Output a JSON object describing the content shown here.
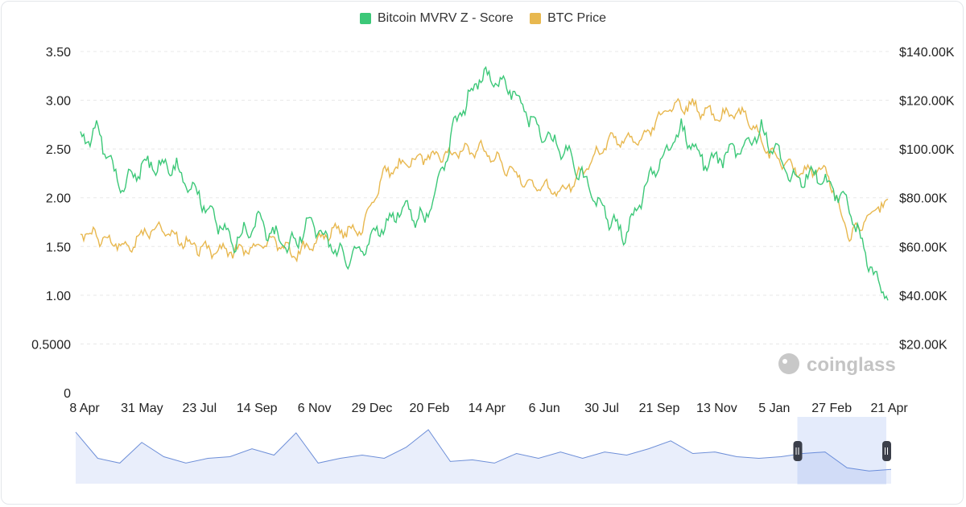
{
  "chart_data": {
    "type": "line",
    "legend_position": "top-center",
    "grid": true,
    "x_tick_labels": [
      "8 Apr",
      "31 May",
      "23 Jul",
      "14 Sep",
      "6 Nov",
      "29 Dec",
      "20 Feb",
      "14 Apr",
      "6 Jun",
      "30 Jul",
      "21 Sep",
      "13 Nov",
      "5 Jan",
      "27 Feb",
      "21 Apr"
    ],
    "y_left": {
      "ylim": [
        0,
        3.5
      ],
      "tick_labels": [
        "3.50",
        "3.00",
        "2.50",
        "2.00",
        "1.50",
        "1.00",
        "0.5000",
        "0"
      ]
    },
    "y_right": {
      "ylim": [
        0,
        140000
      ],
      "tick_labels": [
        "$140.00K",
        "$120.00K",
        "$100.00K",
        "$80.00K",
        "$60.00K",
        "$40.00K",
        "$20.00K"
      ]
    },
    "series": [
      {
        "name": "Bitcoin MVRV Z - Score",
        "axis": "left",
        "color": "#3cc878",
        "x": [
          0,
          2,
          5,
          8,
          12,
          15,
          19,
          22,
          26,
          29,
          33,
          36,
          40,
          43,
          47,
          50,
          54,
          57,
          61,
          64,
          68,
          71,
          75,
          78,
          82,
          85,
          89,
          92,
          96,
          99,
          101
        ],
        "values": [
          2.55,
          2.7,
          2.1,
          2.35,
          2.3,
          2.0,
          1.55,
          1.75,
          1.5,
          1.75,
          1.35,
          1.55,
          1.9,
          1.75,
          2.8,
          3.25,
          3.1,
          2.7,
          2.45,
          2.0,
          1.6,
          2.2,
          2.7,
          2.35,
          2.5,
          2.7,
          2.2,
          2.25,
          1.9,
          1.2,
          0.95
        ]
      },
      {
        "name": "BTC Price",
        "axis": "right",
        "color": "#e8b84f",
        "x": [
          0,
          3,
          6,
          9,
          13,
          16,
          20,
          24,
          27,
          31,
          35,
          38,
          42,
          46,
          50,
          53,
          56,
          60,
          63,
          66,
          70,
          73,
          76,
          79,
          83,
          86,
          90,
          93,
          96,
          100
        ],
        "values": [
          66000,
          63000,
          60000,
          68000,
          62000,
          58000,
          58000,
          62000,
          57000,
          66000,
          67000,
          90000,
          96000,
          98000,
          100000,
          93000,
          86000,
          82000,
          92000,
          104000,
          104000,
          116000,
          118000,
          114000,
          114000,
          98000,
          90000,
          92000,
          64000,
          78000
        ]
      }
    ],
    "navigator": {
      "values": [
        3.25,
        1.6,
        1.3,
        2.6,
        1.7,
        1.3,
        1.6,
        1.7,
        2.2,
        1.8,
        3.2,
        1.3,
        1.6,
        1.8,
        1.6,
        2.3,
        3.4,
        1.4,
        1.5,
        1.3,
        1.9,
        1.6,
        2.0,
        1.6,
        2.0,
        1.8,
        2.2,
        2.7,
        1.9,
        2.0,
        1.7,
        1.6,
        1.7,
        1.9,
        2.0,
        1.0,
        0.8,
        0.9
      ],
      "selection": [
        0.885,
        1.0
      ]
    }
  },
  "watermark": "coinglass"
}
